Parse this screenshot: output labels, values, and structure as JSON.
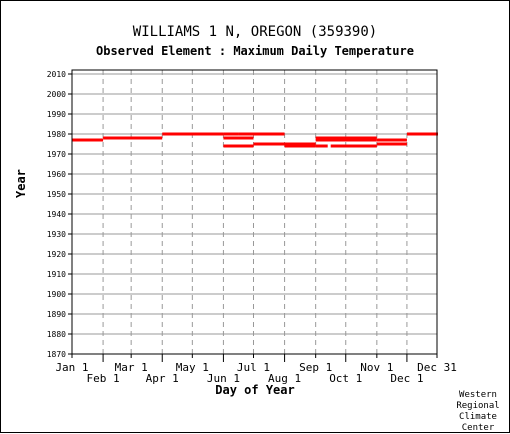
{
  "chart_data": {
    "type": "bar",
    "title": "WILLIAMS 1 N, OREGON   (359390)",
    "subtitle": "Observed Element : Maximum Daily Temperature",
    "xlabel": "Day of Year",
    "ylabel": "Year",
    "credit": [
      "Western",
      "Regional",
      "Climate",
      "Center"
    ],
    "xlim": [
      1,
      365
    ],
    "ylim": [
      1870,
      2012
    ],
    "x_ticks_top_row": [
      {
        "label": "Jan 1",
        "day": 1
      },
      {
        "label": "Mar 1",
        "day": 60
      },
      {
        "label": "May 1",
        "day": 121
      },
      {
        "label": "Jul 1",
        "day": 182
      },
      {
        "label": "Sep 1",
        "day": 244
      },
      {
        "label": "Nov 1",
        "day": 305
      },
      {
        "label": "Dec 31",
        "day": 365
      }
    ],
    "x_ticks_bottom_row": [
      {
        "label": "Feb 1",
        "day": 32
      },
      {
        "label": "Apr 1",
        "day": 91
      },
      {
        "label": "Jun 1",
        "day": 152
      },
      {
        "label": "Aug 1",
        "day": 213
      },
      {
        "label": "Oct 1",
        "day": 274
      },
      {
        "label": "Dec 1",
        "day": 335
      }
    ],
    "y_ticks": [
      1870,
      1880,
      1890,
      1900,
      1910,
      1920,
      1930,
      1940,
      1950,
      1960,
      1970,
      1980,
      1990,
      2000,
      2010
    ],
    "grid": true,
    "series_color": "#ff0000",
    "segments": [
      {
        "year": 1977,
        "start_day": 1,
        "end_day": 31
      },
      {
        "year": 1978,
        "start_day": 32,
        "end_day": 90
      },
      {
        "year": 1980,
        "start_day": 91,
        "end_day": 151
      },
      {
        "year": 1980,
        "start_day": 152,
        "end_day": 166
      },
      {
        "year": 1980,
        "start_day": 167,
        "end_day": 212
      },
      {
        "year": 1978,
        "start_day": 152,
        "end_day": 181
      },
      {
        "year": 1974,
        "start_day": 152,
        "end_day": 181
      },
      {
        "year": 1975,
        "start_day": 182,
        "end_day": 243
      },
      {
        "year": 1974,
        "start_day": 213,
        "end_day": 243
      },
      {
        "year": 1978,
        "start_day": 244,
        "end_day": 304
      },
      {
        "year": 1977,
        "start_day": 244,
        "end_day": 304
      },
      {
        "year": 1974,
        "start_day": 244,
        "end_day": 255
      },
      {
        "year": 1974,
        "start_day": 259,
        "end_day": 304
      },
      {
        "year": 1977,
        "start_day": 305,
        "end_day": 334
      },
      {
        "year": 1975,
        "start_day": 305,
        "end_day": 334
      },
      {
        "year": 1980,
        "start_day": 335,
        "end_day": 365
      }
    ]
  }
}
